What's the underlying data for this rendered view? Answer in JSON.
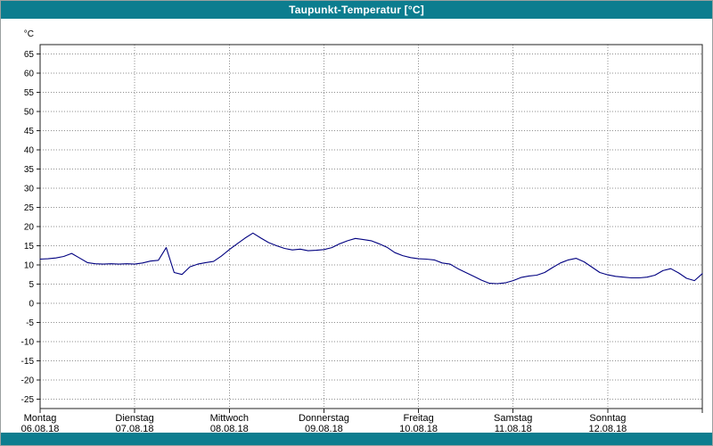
{
  "window": {
    "title": "Taupunkt-Temperatur [°C]",
    "titlebar_color": "#0c7d8f"
  },
  "chart_data": {
    "type": "line",
    "title": "Taupunkt-Temperatur [°C]",
    "ylabel": "°C",
    "ylim": [
      -27.5,
      67.5
    ],
    "yticks": [
      65,
      60,
      55,
      50,
      45,
      40,
      35,
      30,
      25,
      20,
      15,
      10,
      5,
      0,
      -5,
      -10,
      -15,
      -20,
      -25
    ],
    "grid": "dotted",
    "line_color": "#000080",
    "x_hours_range": [
      0,
      168
    ],
    "x_step_hours": 2,
    "days": [
      {
        "name": "Montag",
        "date": "06.08.18"
      },
      {
        "name": "Dienstag",
        "date": "07.08.18"
      },
      {
        "name": "Mittwoch",
        "date": "08.08.18"
      },
      {
        "name": "Donnerstag",
        "date": "09.08.18"
      },
      {
        "name": "Freitag",
        "date": "10.08.18"
      },
      {
        "name": "Samstag",
        "date": "11.08.18"
      },
      {
        "name": "Sonntag",
        "date": "12.08.18"
      }
    ],
    "series": [
      {
        "name": "Taupunkt-Temperatur",
        "values": [
          11.5,
          11.6,
          11.8,
          12.2,
          13.0,
          11.8,
          10.6,
          10.3,
          10.2,
          10.3,
          10.2,
          10.3,
          10.2,
          10.5,
          11.0,
          11.2,
          14.5,
          8.0,
          7.5,
          9.5,
          10.2,
          10.6,
          10.9,
          12.3,
          14.0,
          15.5,
          17.0,
          18.3,
          17.0,
          15.8,
          15.0,
          14.3,
          13.9,
          14.1,
          13.7,
          13.8,
          14.0,
          14.5,
          15.5,
          16.3,
          16.9,
          16.6,
          16.3,
          15.5,
          14.6,
          13.2,
          12.4,
          11.9,
          11.6,
          11.5,
          11.3,
          10.5,
          10.2,
          9.0,
          8.0,
          7.0,
          6.0,
          5.2,
          5.1,
          5.3,
          5.9,
          6.7,
          7.1,
          7.3,
          8.0,
          9.3,
          10.5,
          11.3,
          11.7,
          10.8,
          9.4,
          8.0,
          7.4,
          7.0,
          6.8,
          6.6,
          6.6,
          6.8,
          7.3,
          8.5,
          9.0,
          7.9,
          6.5,
          5.9,
          7.7
        ]
      }
    ]
  }
}
